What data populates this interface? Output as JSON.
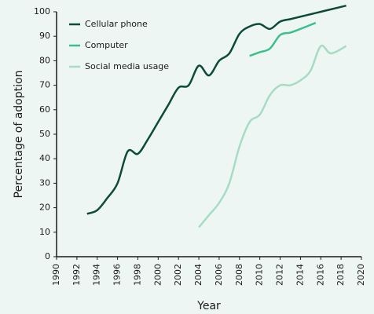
{
  "chart_data": {
    "type": "line",
    "y_label": "Percentage of adoption",
    "x_label": "Year",
    "xlim": [
      1990,
      2020
    ],
    "xticks": [
      1990,
      1992,
      1994,
      1996,
      1998,
      2000,
      2002,
      2004,
      2006,
      2008,
      2010,
      2012,
      2014,
      2016,
      2018,
      2020
    ],
    "ylim": [
      0,
      100
    ],
    "yticks": [
      0,
      10,
      20,
      30,
      40,
      50,
      60,
      70,
      80,
      90,
      100
    ],
    "legend": "upper-left",
    "series": [
      {
        "name": "Cellular phone",
        "color": "#0d4a3a",
        "x": [
          1993,
          1994,
          1995,
          1996,
          1997,
          1998,
          1999,
          2000,
          2001,
          2002,
          2003,
          2004,
          2005,
          2006,
          2007,
          2008,
          2009,
          2010,
          2011,
          2012,
          2013,
          2014,
          2015,
          2016,
          2017,
          2018.5
        ],
        "values": [
          17.5,
          19,
          24,
          30,
          43,
          42,
          48,
          55,
          62,
          69,
          70,
          78,
          74,
          80,
          83,
          91,
          94,
          95,
          93,
          96,
          97,
          98,
          99,
          100,
          101,
          102.5
        ]
      },
      {
        "name": "Computer",
        "color": "#3dbf8c",
        "x": [
          2009,
          2010,
          2011,
          2012,
          2013,
          2014,
          2015.5
        ],
        "values": [
          82,
          83.5,
          85,
          90.5,
          91.5,
          93,
          95.5
        ]
      },
      {
        "name": "Social media usage",
        "color": "#a6dcc4",
        "x": [
          2004,
          2005,
          2006,
          2007,
          2008,
          2009,
          2010,
          2011,
          2012,
          2013,
          2014,
          2015,
          2016,
          2017,
          2018.5
        ],
        "values": [
          12,
          17,
          22,
          30,
          45,
          55,
          58,
          66,
          70,
          70,
          72,
          76,
          86,
          83,
          86
        ]
      }
    ]
  }
}
